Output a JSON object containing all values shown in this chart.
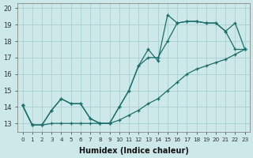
{
  "xlabel": "Humidex (Indice chaleur)",
  "ylabel": "",
  "xlim": [
    -0.5,
    23.5
  ],
  "ylim": [
    12.5,
    20.3
  ],
  "yticks": [
    13,
    14,
    15,
    16,
    17,
    18,
    19,
    20
  ],
  "xticks": [
    0,
    1,
    2,
    3,
    4,
    5,
    6,
    7,
    8,
    9,
    10,
    11,
    12,
    13,
    14,
    15,
    16,
    17,
    18,
    19,
    20,
    21,
    22,
    23
  ],
  "xtick_labels": [
    "0",
    "1",
    "2",
    "3",
    "4",
    "5",
    "6",
    "7",
    "8",
    "9",
    "10",
    "11",
    "12",
    "13",
    "14",
    "15",
    "16",
    "17",
    "18",
    "19",
    "20",
    "21",
    "22",
    "23"
  ],
  "background_color": "#cce8e8",
  "grid_color": "#aad0d0",
  "line_color": "#1a6e6a",
  "line1_x": [
    0,
    1,
    2,
    3,
    4,
    5,
    6,
    7,
    8,
    9,
    10,
    11,
    12,
    13,
    14,
    15,
    16,
    17,
    18,
    19,
    20,
    21,
    22,
    23
  ],
  "line1_y": [
    14.1,
    12.9,
    12.9,
    13.0,
    13.0,
    13.0,
    13.0,
    13.0,
    13.0,
    13.0,
    13.2,
    13.5,
    13.8,
    14.2,
    14.5,
    15.0,
    15.5,
    16.0,
    16.3,
    16.5,
    16.7,
    16.9,
    17.2,
    17.5
  ],
  "line2_x": [
    0,
    1,
    2,
    3,
    4,
    5,
    6,
    7,
    8,
    9,
    10,
    11,
    12,
    13,
    14,
    15,
    16,
    17,
    18,
    19,
    20,
    21,
    22,
    23
  ],
  "line2_y": [
    14.1,
    12.9,
    12.9,
    13.8,
    14.5,
    14.2,
    14.2,
    13.3,
    13.0,
    13.0,
    14.0,
    15.0,
    16.5,
    17.0,
    17.0,
    18.0,
    19.1,
    19.2,
    19.2,
    19.1,
    19.1,
    18.6,
    17.5,
    17.5
  ],
  "line3_x": [
    0,
    1,
    2,
    3,
    4,
    5,
    6,
    7,
    8,
    9,
    10,
    11,
    12,
    13,
    14,
    15,
    16,
    17,
    18,
    19,
    20,
    21,
    22,
    23
  ],
  "line3_y": [
    14.1,
    12.9,
    12.9,
    13.8,
    14.5,
    14.2,
    14.2,
    13.3,
    13.0,
    13.0,
    14.0,
    15.0,
    16.5,
    17.5,
    16.8,
    19.6,
    19.1,
    19.2,
    19.2,
    19.1,
    19.1,
    18.6,
    19.1,
    17.5
  ]
}
